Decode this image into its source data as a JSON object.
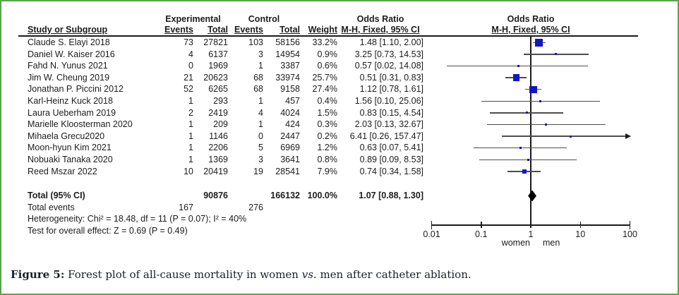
{
  "figure": {
    "caption_label": "Figure 5:",
    "caption_body": " Forest plot of all-cause mortality in women ",
    "caption_italic": "vs.",
    "caption_tail": " men after catheter ablation."
  },
  "colors": {
    "frame_border_green": "#5ba44c",
    "marker_blue": "#1414cc",
    "diamond_black": "#000000",
    "ci_line_gray": "#4d4d4d"
  },
  "header": {
    "group_experimental": "Experimental",
    "group_control": "Control",
    "study": "Study or Subgroup",
    "exp_events": "Events",
    "exp_total": "Total",
    "ctrl_events": "Events",
    "ctrl_total": "Total",
    "weight": "Weight",
    "or_line1": "Odds Ratio",
    "or_line2": "M-H, Fixed, 95% CI",
    "plot_line1": "Odds Ratio",
    "plot_line2": "M-H, Fixed, 95% CI"
  },
  "summary": {
    "total_label": "Total (95% CI)",
    "total_exp": "90876",
    "total_ctrl": "166132",
    "total_weight": "100.0%",
    "total_or_text": "1.07 [0.88, 1.30]",
    "events_label": "Total events",
    "events_exp": "167",
    "events_ctrl": "276",
    "heterogeneity": "Heterogeneity: Chi² = 18.48, df = 11 (P = 0.07); I² = 40%",
    "overall_effect": "Test for overall effect: Z = 0.69 (P = 0.49)"
  },
  "axis": {
    "left_label": "women",
    "right_label": "men"
  },
  "chart_data": {
    "type": "forest",
    "effect_measure": "Odds Ratio",
    "method": "M-H, Fixed, 95% CI",
    "x_scale": "log",
    "x_range": [
      0.01,
      100
    ],
    "x_ticks": [
      0.01,
      0.1,
      1,
      10,
      100
    ],
    "x_tick_labels": [
      "0.01",
      "0.1",
      "1",
      "10",
      "100"
    ],
    "favours_left": "women",
    "favours_right": "men",
    "studies": [
      {
        "name": "Claude S. Elayi 2018",
        "exp_events": "73",
        "exp_total": "27821",
        "ctrl_events": "103",
        "ctrl_total": "58156",
        "weight": "33.2%",
        "weight_pct": 33.2,
        "or_text": "1.48 [1.10, 2.00]",
        "or": 1.48,
        "ci_low": 1.1,
        "ci_high": 2.0
      },
      {
        "name": "Daniel W. Kaiser 2016",
        "exp_events": "4",
        "exp_total": "6137",
        "ctrl_events": "3",
        "ctrl_total": "14954",
        "weight": "0.9%",
        "weight_pct": 0.9,
        "or_text": "3.25 [0.73, 14.53]",
        "or": 3.25,
        "ci_low": 0.73,
        "ci_high": 14.53
      },
      {
        "name": "Fahd N. Yunus 2021",
        "exp_events": "0",
        "exp_total": "1969",
        "ctrl_events": "1",
        "ctrl_total": "3387",
        "weight": "0.6%",
        "weight_pct": 0.6,
        "or_text": "0.57 [0.02, 14.08]",
        "or": 0.57,
        "ci_low": 0.02,
        "ci_high": 14.08
      },
      {
        "name": "Jim W. Cheung 2019",
        "exp_events": "21",
        "exp_total": "20623",
        "ctrl_events": "68",
        "ctrl_total": "33974",
        "weight": "25.7%",
        "weight_pct": 25.7,
        "or_text": "0.51 [0.31, 0.83]",
        "or": 0.51,
        "ci_low": 0.31,
        "ci_high": 0.83
      },
      {
        "name": "Jonathan P. Piccini 2012",
        "exp_events": "52",
        "exp_total": "6265",
        "ctrl_events": "68",
        "ctrl_total": "9158",
        "weight": "27.4%",
        "weight_pct": 27.4,
        "or_text": "1.12 [0.78, 1.61]",
        "or": 1.12,
        "ci_low": 0.78,
        "ci_high": 1.61
      },
      {
        "name": "Karl-Heinz Kuck 2018",
        "exp_events": "1",
        "exp_total": "293",
        "ctrl_events": "1",
        "ctrl_total": "457",
        "weight": "0.4%",
        "weight_pct": 0.4,
        "or_text": "1.56 [0.10, 25.06]",
        "or": 1.56,
        "ci_low": 0.1,
        "ci_high": 25.06
      },
      {
        "name": "Laura Ueberham 2019",
        "exp_events": "2",
        "exp_total": "2419",
        "ctrl_events": "4",
        "ctrl_total": "4024",
        "weight": "1.5%",
        "weight_pct": 1.5,
        "or_text": "0.83 [0.15, 4.54]",
        "or": 0.83,
        "ci_low": 0.15,
        "ci_high": 4.54
      },
      {
        "name": "Marielle Kloosterman 2020",
        "exp_events": "1",
        "exp_total": "209",
        "ctrl_events": "1",
        "ctrl_total": "424",
        "weight": "0.3%",
        "weight_pct": 0.3,
        "or_text": "2.03 [0.13, 32.67]",
        "or": 2.03,
        "ci_low": 0.13,
        "ci_high": 32.67
      },
      {
        "name": "Mihaela Grecu2020",
        "exp_events": "1",
        "exp_total": "1146",
        "ctrl_events": "0",
        "ctrl_total": "2447",
        "weight": "0.2%",
        "weight_pct": 0.2,
        "or_text": "6.41 [0.26, 157.47]",
        "or": 6.41,
        "ci_low": 0.26,
        "ci_high": 157.47
      },
      {
        "name": "Moon-hyun Kim 2021",
        "exp_events": "1",
        "exp_total": "2206",
        "ctrl_events": "5",
        "ctrl_total": "6969",
        "weight": "1.2%",
        "weight_pct": 1.2,
        "or_text": "0.63 [0.07, 5.41]",
        "or": 0.63,
        "ci_low": 0.07,
        "ci_high": 5.41
      },
      {
        "name": "Nobuaki Tanaka 2020",
        "exp_events": "1",
        "exp_total": "1369",
        "ctrl_events": "3",
        "ctrl_total": "3641",
        "weight": "0.8%",
        "weight_pct": 0.8,
        "or_text": "0.89 [0.09, 8.53]",
        "or": 0.89,
        "ci_low": 0.09,
        "ci_high": 8.53
      },
      {
        "name": "Reed Mszar 2022",
        "exp_events": "10",
        "exp_total": "20419",
        "ctrl_events": "19",
        "ctrl_total": "28541",
        "weight": "7.9%",
        "weight_pct": 7.9,
        "or_text": "0.74 [0.34, 1.58]",
        "or": 0.74,
        "ci_low": 0.34,
        "ci_high": 1.58
      }
    ],
    "total": {
      "label": "Total (95% CI)",
      "or": 1.07,
      "ci_low": 0.88,
      "ci_high": 1.3,
      "weight_pct": 100.0
    }
  }
}
